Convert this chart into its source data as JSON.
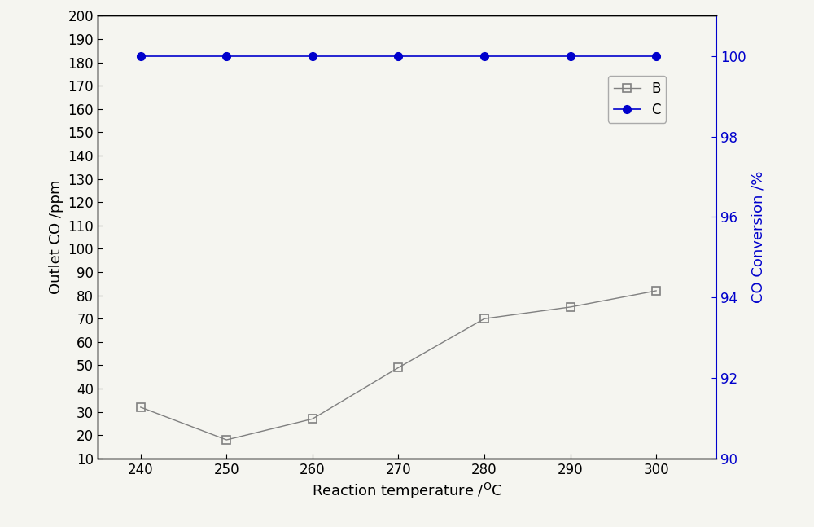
{
  "x": [
    240,
    250,
    260,
    270,
    280,
    290,
    300
  ],
  "B_y": [
    32,
    18,
    27,
    49,
    70,
    75,
    82
  ],
  "C_y": [
    100,
    100,
    100,
    100,
    100,
    100,
    100
  ],
  "ylabel_left": "Outlet CO /ppm",
  "ylabel_right": "CO Conversion /%",
  "ylim_left": [
    10,
    200
  ],
  "ylim_right": [
    90,
    101
  ],
  "yticks_left": [
    10,
    20,
    30,
    40,
    50,
    60,
    70,
    80,
    90,
    100,
    110,
    120,
    130,
    140,
    150,
    160,
    170,
    180,
    190,
    200
  ],
  "yticks_right": [
    90,
    92,
    94,
    96,
    98,
    100
  ],
  "xticks": [
    240,
    250,
    260,
    270,
    280,
    290,
    300
  ],
  "line_B_color": "#808080",
  "line_C_color": "#0000cc",
  "marker_B": "s",
  "marker_C": "o",
  "legend_B": "B",
  "legend_C": "C",
  "label_fontsize": 13,
  "tick_fontsize": 12,
  "legend_fontsize": 12,
  "background_color": "#f5f5f0",
  "fig_width": 10.0,
  "fig_height": 6.47
}
